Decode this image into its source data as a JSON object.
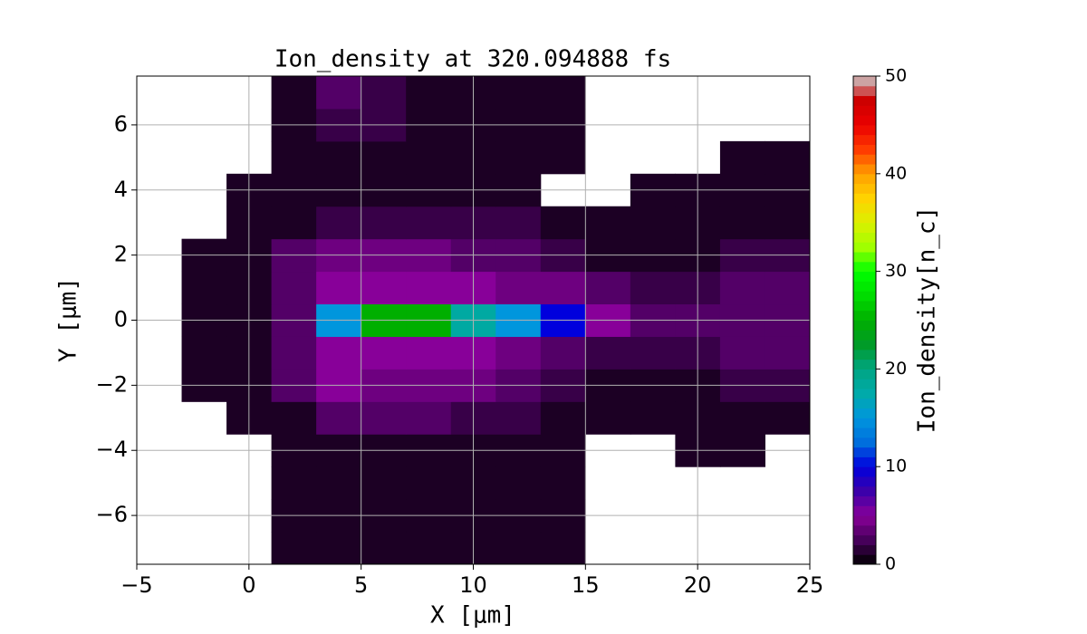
{
  "chart_data": {
    "type": "heatmap",
    "title": "Ion_density at 320.094888 fs",
    "x_label": "X [μm]",
    "y_label": "Y [μm]",
    "colorbar_label": "Ion_density[n_c]",
    "colormap": "nipy_spectral",
    "x": [
      -4,
      -2,
      0,
      2,
      4,
      6,
      8,
      10,
      12,
      14,
      16,
      18,
      20,
      22,
      24
    ],
    "y": [
      -7,
      -6,
      -5,
      -4,
      -3,
      -2,
      -1,
      0,
      1,
      2,
      3,
      4,
      5,
      6,
      7
    ],
    "z": [
      [
        null,
        null,
        null,
        1,
        1,
        1,
        1,
        1,
        1,
        1,
        null,
        null,
        null,
        null,
        null
      ],
      [
        null,
        null,
        null,
        1,
        1,
        1,
        1,
        1,
        1,
        1,
        null,
        null,
        null,
        null,
        null
      ],
      [
        null,
        null,
        null,
        1,
        1,
        1,
        1,
        1,
        1,
        1,
        null,
        null,
        null,
        null,
        null
      ],
      [
        null,
        null,
        null,
        1,
        1,
        1,
        1,
        1,
        1,
        1,
        null,
        null,
        1,
        1,
        null
      ],
      [
        null,
        null,
        1,
        1,
        3,
        3,
        3,
        2,
        2,
        1,
        1,
        1,
        1,
        1,
        1
      ],
      [
        null,
        1,
        1,
        3,
        5,
        4,
        4,
        4,
        3,
        2,
        1,
        1,
        1,
        2,
        2
      ],
      [
        null,
        1,
        1,
        3,
        5,
        5,
        5,
        5,
        4,
        3,
        2,
        2,
        2,
        3,
        3
      ],
      [
        null,
        1,
        1,
        3,
        15,
        25,
        25,
        18,
        15,
        10,
        5,
        3,
        3,
        3,
        3
      ],
      [
        null,
        1,
        1,
        3,
        5,
        5,
        5,
        5,
        4,
        4,
        3,
        2,
        2,
        3,
        3
      ],
      [
        null,
        1,
        1,
        3,
        4,
        4,
        4,
        3,
        3,
        2,
        1,
        1,
        1,
        2,
        2
      ],
      [
        null,
        null,
        1,
        1,
        2,
        2,
        2,
        2,
        2,
        1,
        1,
        1,
        1,
        1,
        1
      ],
      [
        null,
        null,
        1,
        1,
        1,
        1,
        1,
        1,
        1,
        null,
        null,
        1,
        1,
        1,
        1
      ],
      [
        null,
        null,
        null,
        1,
        1,
        1,
        1,
        1,
        1,
        1,
        null,
        null,
        null,
        1,
        1
      ],
      [
        null,
        null,
        null,
        1,
        2,
        2,
        1,
        1,
        1,
        1,
        null,
        null,
        null,
        null,
        null
      ],
      [
        null,
        null,
        null,
        1,
        3,
        2,
        1,
        1,
        1,
        1,
        null,
        null,
        null,
        null,
        null
      ]
    ],
    "xlim": [
      -5,
      25
    ],
    "ylim": [
      -7.5,
      7.5
    ],
    "clim": [
      0,
      50
    ],
    "xticks": [
      {
        "value": -5,
        "label": "−5"
      },
      0,
      5,
      10,
      15,
      20,
      25
    ],
    "yticks": [
      {
        "value": -6,
        "label": "−6"
      },
      {
        "value": -4,
        "label": "−4"
      },
      {
        "value": -2,
        "label": "−2"
      },
      0,
      2,
      4,
      6
    ],
    "cticks": [
      0,
      10,
      20,
      30,
      40,
      50
    ],
    "grid": true
  }
}
